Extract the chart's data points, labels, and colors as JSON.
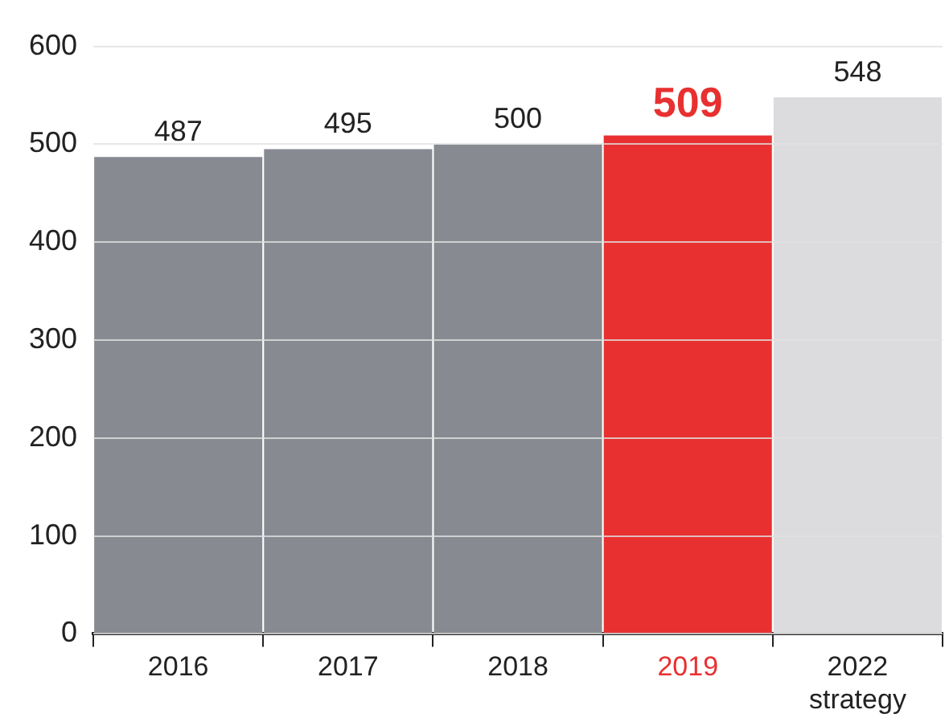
{
  "chart_data": {
    "type": "bar",
    "categories": [
      "2016",
      "2017",
      "2018",
      "2019",
      "2022 strategy"
    ],
    "values": [
      487,
      495,
      500,
      509,
      548
    ],
    "colors": [
      "#878b91",
      "#878b91",
      "#878b91",
      "#e83030",
      "#dcdcde"
    ],
    "ylim": [
      0,
      600
    ],
    "yticks": [
      0,
      100,
      200,
      300,
      400,
      500,
      600
    ],
    "grid": "y",
    "data_labels": true
  }
}
